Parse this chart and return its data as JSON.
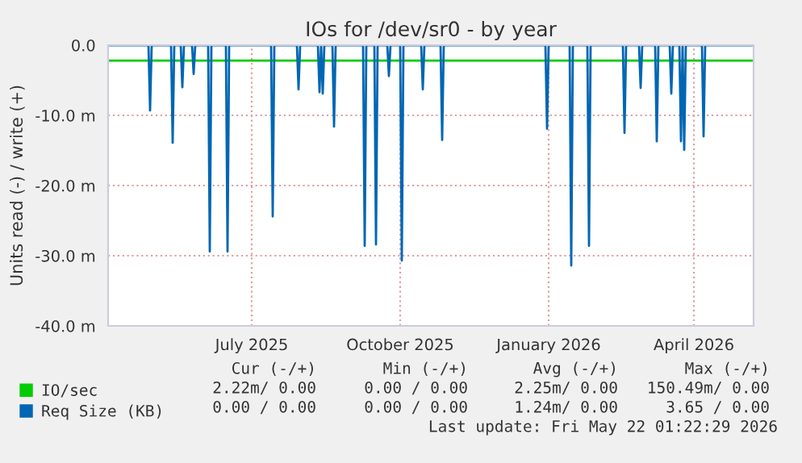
{
  "chart_data": {
    "type": "line",
    "title": "IOs for /dev/sr0 - by year",
    "ylabel": "Units read (-) / write (+)",
    "xlim": [
      "2025-04-03",
      "2026-05-08"
    ],
    "xticks": [
      {
        "value": "2025-07-01",
        "label": "July 2025"
      },
      {
        "value": "2025-10-01",
        "label": "October 2025"
      },
      {
        "value": "2026-01-01",
        "label": "January 2026"
      },
      {
        "value": "2026-04-01",
        "label": "April 2026"
      }
    ],
    "ylim": [
      -40,
      0
    ],
    "yticks": [
      {
        "value": 0,
        "label": "0.0"
      },
      {
        "value": -10,
        "label": "-10.0 m"
      },
      {
        "value": -20,
        "label": "-20.0 m"
      },
      {
        "value": -30,
        "label": "-30.0 m"
      },
      {
        "value": -40,
        "label": "-40.0 m"
      }
    ],
    "grid": true,
    "legend": "bottom left",
    "series": [
      {
        "name": "IO/sec",
        "color": "#00cc00",
        "x": [
          "2025-04-03",
          "2026-05-08"
        ],
        "values": [
          -2.2,
          -2.2
        ]
      },
      {
        "name": "Req Size (KB)",
        "color": "#0066b3",
        "x": [
          "2025-04-03",
          "2025-04-28",
          "2025-04-29",
          "2025-04-30",
          "2025-05-12",
          "2025-05-13",
          "2025-05-14",
          "2025-05-18",
          "2025-05-19",
          "2025-05-20",
          "2025-05-25",
          "2025-05-26",
          "2025-05-27",
          "2025-06-04",
          "2025-06-05",
          "2025-06-06",
          "2025-06-15",
          "2025-06-16",
          "2025-06-17",
          "2025-07-13",
          "2025-07-14",
          "2025-07-15",
          "2025-07-29",
          "2025-07-30",
          "2025-07-31",
          "2025-08-11",
          "2025-08-12",
          "2025-08-13",
          "2025-08-14",
          "2025-08-15",
          "2025-08-20",
          "2025-08-21",
          "2025-08-22",
          "2025-09-08",
          "2025-09-09",
          "2025-09-10",
          "2025-09-15",
          "2025-09-16",
          "2025-09-17",
          "2025-09-23",
          "2025-09-24",
          "2025-09-25",
          "2025-10-01",
          "2025-10-02",
          "2025-10-03",
          "2025-10-14",
          "2025-10-15",
          "2025-10-16",
          "2025-10-26",
          "2025-10-27",
          "2025-10-28",
          "2025-12-30",
          "2025-12-31",
          "2026-01-01",
          "2026-01-14",
          "2026-01-15",
          "2026-01-16",
          "2026-01-25",
          "2026-01-26",
          "2026-01-27",
          "2026-02-16",
          "2026-02-17",
          "2026-02-18",
          "2026-02-26",
          "2026-02-27",
          "2026-02-28",
          "2026-03-08",
          "2026-03-09",
          "2026-03-10",
          "2026-03-17",
          "2026-03-18",
          "2026-03-19",
          "2026-03-23",
          "2026-03-24",
          "2026-03-25",
          "2026-03-26",
          "2026-03-27",
          "2026-04-06",
          "2026-04-07",
          "2026-04-08",
          "2026-05-08"
        ],
        "values": [
          0,
          0,
          -9.3,
          0,
          0,
          -13.9,
          0,
          0,
          -6.0,
          0,
          0,
          -4.1,
          0,
          0,
          -29.4,
          0,
          0,
          -29.4,
          0,
          0,
          -24.4,
          0,
          0,
          -6.3,
          0,
          0,
          -6.7,
          0,
          -6.9,
          0,
          0,
          -11.6,
          0,
          0,
          -28.6,
          0,
          0,
          -28.4,
          0,
          0,
          -4.4,
          0,
          0,
          -30.7,
          0,
          0,
          -6.3,
          0,
          0,
          -13.5,
          0,
          0,
          -11.9,
          0,
          0,
          -31.4,
          0,
          0,
          -28.6,
          0,
          0,
          -12.5,
          0,
          0,
          -6.1,
          0,
          0,
          -13.7,
          0,
          0,
          -6.9,
          0,
          0,
          -13.7,
          0,
          -14.9,
          0,
          0,
          -13.0,
          0,
          0
        ]
      }
    ],
    "annotations": [
      "Cur (-/+)",
      "Min (-/+)",
      "Avg (-/+)",
      "Max (-/+)",
      "2.22m/ 0.00",
      "0.00 / 0.00",
      "2.25m/ 0.00",
      "150.49m/ 0.00",
      "0.00 / 0.00",
      "0.00 / 0.00",
      "1.24m/ 0.00",
      "3.65 / 0.00",
      "Last update: Fri May 22 01:22:29 2026"
    ]
  }
}
